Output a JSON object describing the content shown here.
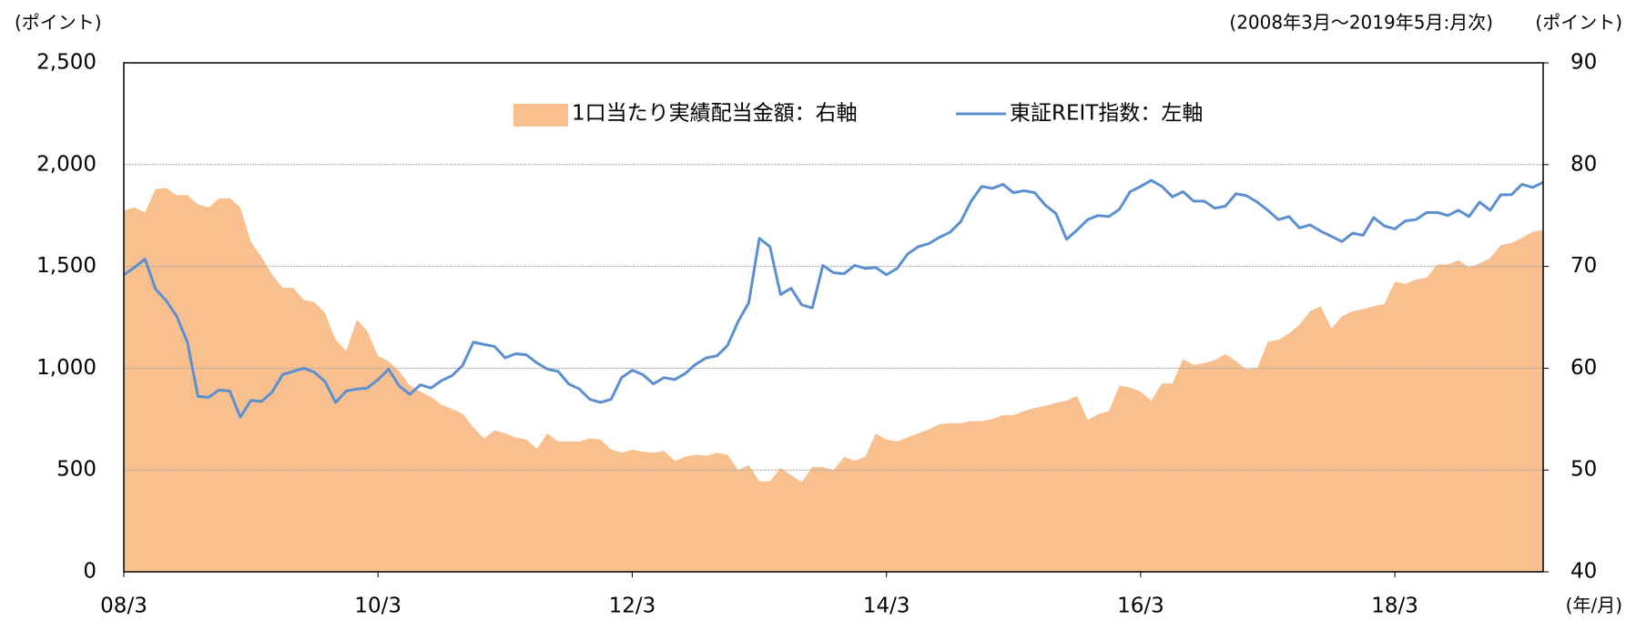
{
  "chart_data": {
    "type": "combo",
    "y_label": "(ポイント)",
    "subtitle": "(2008年3月～2019年5月:月次)",
    "y2_label": "(ポイント)",
    "x_label": "(年/月)",
    "categories": [
      "08/3",
      null,
      null,
      null,
      null,
      null,
      null,
      null,
      null,
      null,
      null,
      null,
      null,
      null,
      null,
      null,
      null,
      null,
      null,
      null,
      null,
      null,
      null,
      null,
      "10/3",
      null,
      null,
      null,
      null,
      null,
      null,
      null,
      null,
      null,
      null,
      null,
      null,
      null,
      null,
      null,
      null,
      null,
      null,
      null,
      null,
      null,
      null,
      null,
      "12/3",
      null,
      null,
      null,
      null,
      null,
      null,
      null,
      null,
      null,
      null,
      null,
      null,
      null,
      null,
      null,
      null,
      null,
      null,
      null,
      null,
      null,
      null,
      null,
      "14/3",
      null,
      null,
      null,
      null,
      null,
      null,
      null,
      null,
      null,
      null,
      null,
      null,
      null,
      null,
      null,
      null,
      null,
      null,
      null,
      null,
      null,
      null,
      null,
      "16/3",
      null,
      null,
      null,
      null,
      null,
      null,
      null,
      null,
      null,
      null,
      null,
      null,
      null,
      null,
      null,
      null,
      null,
      null,
      null,
      null,
      null,
      null,
      null,
      "18/3",
      null,
      null,
      null,
      null,
      null,
      null,
      null,
      null,
      null,
      null,
      null,
      null,
      null,
      null
    ],
    "series": [
      {
        "name": "1口当たり実績配当金額：右軸",
        "type": "area",
        "axis": "y2",
        "color": "#f8c08f",
        "values": [
          75.5,
          75.8,
          75.3,
          77.6,
          77.7,
          77.0,
          77.0,
          76.1,
          75.8,
          76.7,
          76.7,
          75.8,
          72.4,
          70.9,
          69.2,
          67.9,
          67.9,
          66.7,
          66.5,
          65.4,
          62.8,
          61.7,
          64.8,
          63.6,
          61.2,
          60.7,
          59.7,
          58.3,
          57.7,
          57.2,
          56.4,
          56.0,
          55.5,
          54.2,
          53.1,
          53.9,
          53.6,
          53.2,
          53.0,
          52.1,
          53.6,
          52.8,
          52.8,
          52.8,
          53.1,
          53.0,
          52.0,
          51.7,
          52.0,
          51.8,
          51.7,
          51.9,
          50.9,
          51.3,
          51.5,
          51.4,
          51.7,
          51.5,
          50.0,
          50.5,
          48.9,
          48.9,
          50.2,
          49.5,
          48.8,
          50.3,
          50.3,
          50.0,
          51.3,
          50.9,
          51.3,
          53.6,
          53.0,
          52.8,
          53.2,
          53.6,
          54.0,
          54.5,
          54.6,
          54.6,
          54.8,
          54.8,
          55.0,
          55.4,
          55.4,
          55.8,
          56.1,
          56.3,
          56.6,
          56.8,
          57.3,
          54.9,
          55.5,
          55.8,
          58.3,
          58.1,
          57.7,
          56.8,
          58.5,
          58.5,
          60.9,
          60.3,
          60.5,
          60.8,
          61.4,
          60.7,
          59.9,
          60.0,
          62.6,
          62.8,
          63.4,
          64.3,
          65.6,
          66.1,
          63.9,
          65.1,
          65.6,
          65.8,
          66.1,
          66.3,
          68.5,
          68.3,
          68.7,
          68.9,
          70.2,
          70.2,
          70.6,
          69.9,
          70.3,
          70.8,
          72.1,
          72.3,
          72.8,
          73.4,
          73.6
        ]
      },
      {
        "name": "東証REIT指数：左軸",
        "type": "line",
        "axis": "y",
        "color": "#5b8fd0",
        "values": [
          1459,
          1495,
          1536,
          1388,
          1332,
          1255,
          1128,
          862,
          857,
          893,
          888,
          760,
          842,
          837,
          883,
          969,
          985,
          1000,
          980,
          934,
          832,
          888,
          898,
          903,
          944,
          995,
          913,
          872,
          918,
          903,
          939,
          964,
          1015,
          1128,
          1117,
          1107,
          1051,
          1071,
          1066,
          1026,
          995,
          985,
          923,
          898,
          847,
          832,
          847,
          954,
          990,
          969,
          923,
          954,
          944,
          974,
          1020,
          1051,
          1061,
          1112,
          1230,
          1321,
          1638,
          1597,
          1362,
          1393,
          1311,
          1296,
          1505,
          1469,
          1464,
          1505,
          1490,
          1495,
          1459,
          1490,
          1561,
          1597,
          1612,
          1643,
          1668,
          1719,
          1821,
          1893,
          1883,
          1903,
          1862,
          1872,
          1862,
          1801,
          1760,
          1633,
          1679,
          1730,
          1750,
          1745,
          1781,
          1867,
          1893,
          1923,
          1893,
          1842,
          1867,
          1821,
          1821,
          1786,
          1796,
          1857,
          1847,
          1816,
          1776,
          1730,
          1745,
          1689,
          1704,
          1673,
          1648,
          1622,
          1663,
          1653,
          1740,
          1699,
          1684,
          1724,
          1730,
          1765,
          1765,
          1750,
          1776,
          1745,
          1816,
          1776,
          1852,
          1852,
          1903,
          1888,
          1913
        ]
      }
    ],
    "ylim": [
      0,
      2500
    ],
    "yticks": [
      0,
      500,
      {
        "value": 1000,
        "label": "1,000"
      },
      {
        "value": 1500,
        "label": "1,500"
      },
      {
        "value": 2000,
        "label": "2,000"
      },
      {
        "value": 2500,
        "label": "2,500"
      }
    ],
    "y2lim": [
      40,
      90
    ],
    "y2ticks": [
      40,
      50,
      60,
      70,
      80,
      90
    ],
    "grid": true
  }
}
